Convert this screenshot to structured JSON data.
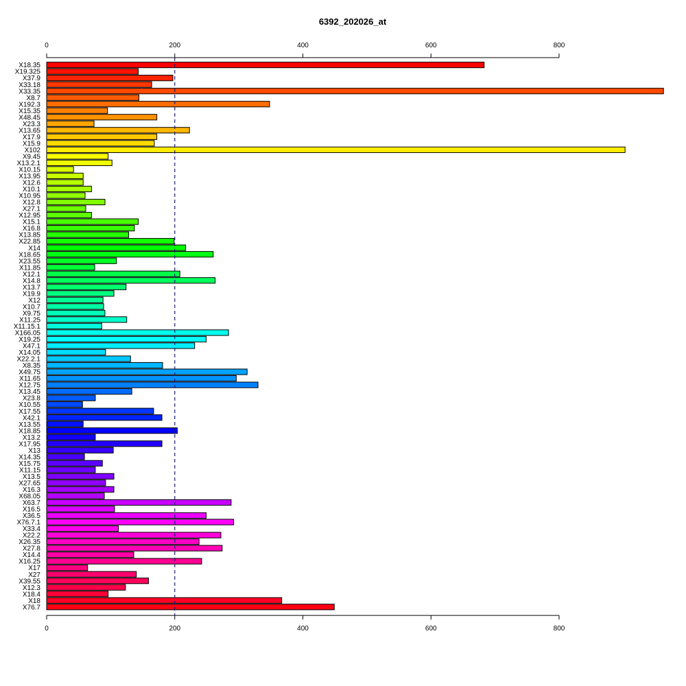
{
  "chart_data": {
    "type": "bar",
    "orientation": "horizontal",
    "title": "6392_202026_at",
    "xlabel": "",
    "ylabel": "",
    "xlim": [
      0,
      960
    ],
    "xticks": [
      0,
      200,
      400,
      600,
      800
    ],
    "reference_line": 200,
    "grid": false,
    "color_scheme": "rainbow",
    "categories": [
      "X18.35",
      "X19.325",
      "X37.9",
      "X33.18",
      "X33.35",
      "X8.7",
      "X192.3",
      "X15.35",
      "X48.45",
      "X23.3",
      "X13.65",
      "X17.9",
      "X15.9",
      "X102",
      "X9.45",
      "X13.2.1",
      "X10.15",
      "X13.95",
      "X12.6",
      "X10.1",
      "X10.95",
      "X12.8",
      "X27.1",
      "X12.95",
      "X15.1",
      "X16.8",
      "X13.85",
      "X22.85",
      "X14",
      "X18.65",
      "X23.55",
      "X11.85",
      "X12.1",
      "X14.8",
      "X13.7",
      "X19.9",
      "X12",
      "X10.7",
      "X9.75",
      "X11.25",
      "X11.15.1",
      "X166.05",
      "X19.25",
      "X47.1",
      "X14.05",
      "X22.2.1",
      "X8.35",
      "X49.75",
      "X11.65",
      "X12.75",
      "X13.45",
      "X23.8",
      "X10.55",
      "X17.55",
      "X42.1",
      "X13.55",
      "X18.85",
      "X13.2",
      "X17.95",
      "X13",
      "X14.35",
      "X15.75",
      "X11.15",
      "X13.5",
      "X27.65",
      "X16.3",
      "X68.05",
      "X63.7",
      "X16.5",
      "X36.5",
      "X76.7.1",
      "X33.4",
      "X22.2",
      "X26.35",
      "X27.8",
      "X14.4",
      "X16.25",
      "X17",
      "X27",
      "X39.55",
      "X12.3",
      "X18.4",
      "X18",
      "X76.7"
    ],
    "values": [
      683,
      143,
      197,
      164,
      963,
      144,
      348,
      95,
      172,
      74,
      223,
      172,
      168,
      903,
      96,
      102,
      42,
      57,
      57,
      70,
      60,
      91,
      61,
      70,
      143,
      137,
      128,
      199,
      217,
      260,
      109,
      75,
      208,
      263,
      124,
      105,
      88,
      89,
      91,
      125,
      86,
      284,
      249,
      231,
      92,
      131,
      181,
      313,
      296,
      330,
      133,
      76,
      56,
      167,
      180,
      57,
      204,
      76,
      180,
      104,
      59,
      87,
      76,
      105,
      92,
      105,
      90,
      288,
      106,
      249,
      292,
      112,
      272,
      238,
      274,
      136,
      242,
      64,
      140,
      159,
      123,
      96,
      367,
      449
    ]
  }
}
